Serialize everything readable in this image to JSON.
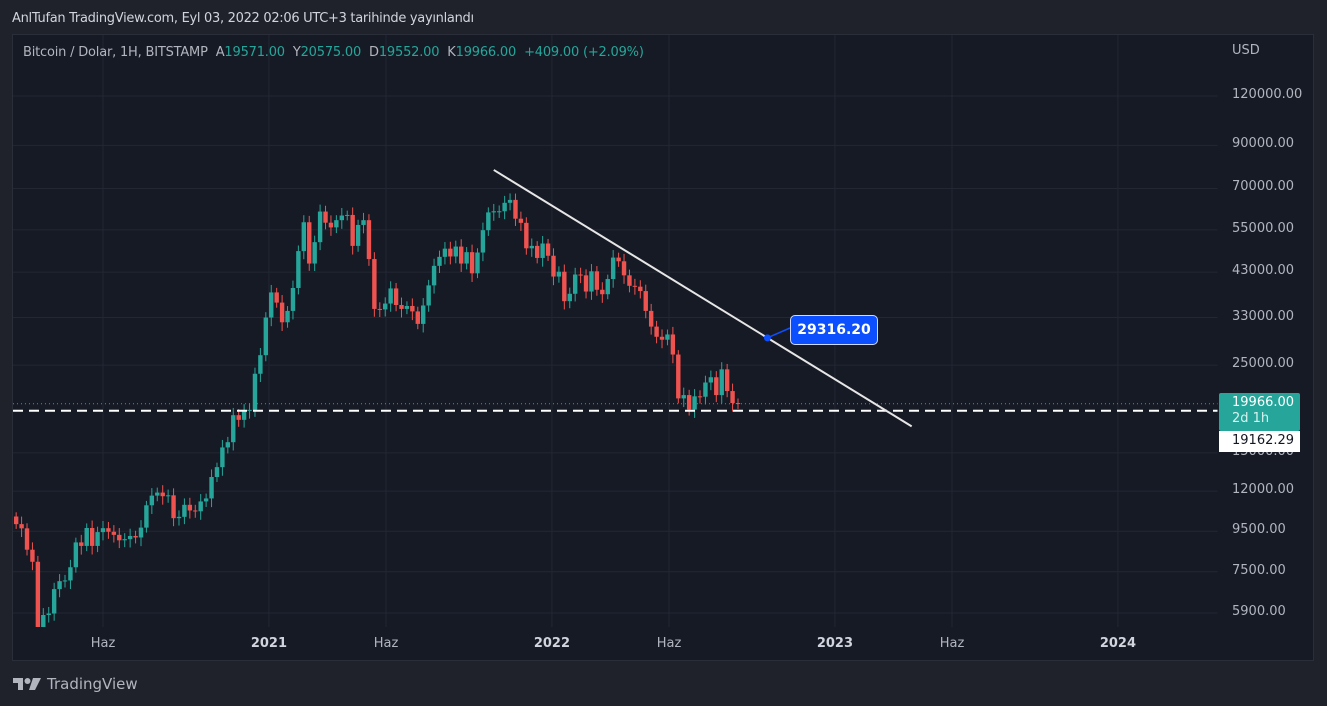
{
  "publication": "AnlTufan TradingView.com, Eyl 03, 2022 02:06 UTC+3 tarihinde yayınlandı",
  "legend": {
    "symbol": "Bitcoin / Dolar, 1H, BITSTAMP",
    "open_label": "A",
    "open": "19571.00",
    "high_label": "Y",
    "high": "20575.00",
    "low_label": "D",
    "low": "19552.00",
    "close_label": "K",
    "close": "19966.00",
    "change": "+409.00 (+2.09%)"
  },
  "price_axis": {
    "currency": "USD",
    "ticks": [
      "120000.00",
      "90000.00",
      "70000.00",
      "55000.00",
      "43000.00",
      "33000.00",
      "25000.00",
      "15000.00",
      "12000.00",
      "9500.00",
      "7500.00",
      "5900.00"
    ]
  },
  "current_price": {
    "value": "19966.00",
    "countdown": "2d 1h"
  },
  "horizontal_line": {
    "value": "19162.29"
  },
  "trendline_callout": {
    "value": "29316.20"
  },
  "footer": {
    "brand": "TradingView"
  },
  "colors": {
    "up": "#26a69a",
    "down": "#ef5350",
    "callout": "#0c4fff",
    "background": "#161a25"
  },
  "chart_data": {
    "type": "candlestick",
    "scale": "log",
    "ylim": [
      5430,
      150000
    ],
    "x_start": "2020-02-10",
    "interval": "1W",
    "x_ticks": [
      {
        "label": "Haz",
        "date": "2020-06-01",
        "year": false
      },
      {
        "label": "2021",
        "date": "2021-01-01",
        "year": true
      },
      {
        "label": "Haz",
        "date": "2021-06-01",
        "year": false
      },
      {
        "label": "2022",
        "date": "2022-01-01",
        "year": true
      },
      {
        "label": "Haz",
        "date": "2022-06-01",
        "year": false
      },
      {
        "label": "2023",
        "date": "2023-01-01",
        "year": true
      },
      {
        "label": "Haz",
        "date": "2023-06-01",
        "year": false
      },
      {
        "label": "2024",
        "date": "2024-01-01",
        "year": true
      }
    ],
    "first_open": 10350,
    "closes": [
      9900,
      9660,
      8530,
      7950,
      5360,
      5830,
      5880,
      6780,
      7100,
      7130,
      7700,
      8900,
      8720,
      9680,
      8720,
      9450,
      9670,
      9470,
      9300,
      9010,
      9070,
      9240,
      9160,
      9700,
      11050,
      11690,
      11900,
      11650,
      11710,
      10250,
      10330,
      11080,
      10720,
      10670,
      11300,
      11500,
      13030,
      13800,
      15480,
      15960,
      18680,
      18180,
      19150,
      19270,
      23780,
      26500,
      33000,
      38200,
      36000,
      32100,
      34300,
      39200,
      48600,
      57500,
      45200,
      51200,
      61200,
      57350,
      55800,
      58200,
      59800,
      60000,
      50100,
      56600,
      58200,
      46400,
      34700,
      34600,
      35800,
      39100,
      35500,
      34700,
      35300,
      34200,
      31800,
      35400,
      39800,
      44600,
      47000,
      49300,
      47100,
      49900,
      45200,
      48300,
      42700,
      48200,
      54900,
      60900,
      61300,
      61300,
      64400,
      65500,
      58700,
      57300,
      49400,
      50100,
      46700,
      50800,
      47300,
      41900,
      43100,
      36300,
      37900,
      42400,
      42200,
      38400,
      43200,
      38800,
      37800,
      41300,
      46800,
      45800,
      42200,
      39700,
      39500,
      38500,
      34300,
      31300,
      29500,
      29000,
      29900,
      26600,
      20600,
      21000,
      19300,
      20850,
      20800,
      22600,
      23300,
      21000,
      24400,
      21500,
      20050,
      19966
    ],
    "trendline": {
      "start": {
        "date": "2021-10-18",
        "price": 78000
      },
      "end": {
        "date": "2023-04-10",
        "price": 17500
      }
    },
    "title": "Bitcoin / Dolar, 1H, BITSTAMP"
  }
}
